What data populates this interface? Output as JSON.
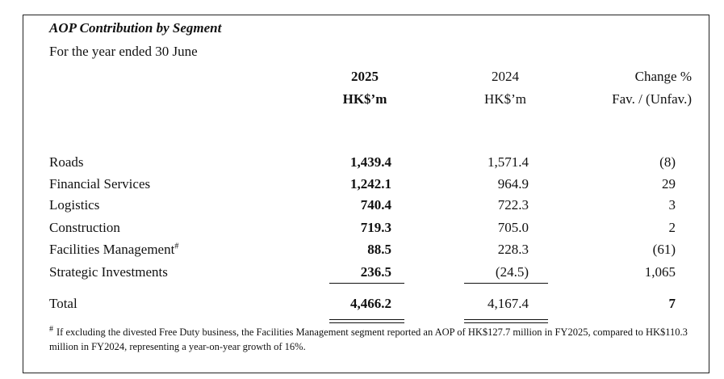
{
  "title": "AOP Contribution by Segment",
  "subtitle": "For the year ended 30 June",
  "columns": {
    "current": {
      "year": "2025",
      "unit": "HK$’m"
    },
    "prior": {
      "year": "2024",
      "unit": "HK$’m"
    },
    "change": {
      "line1": "Change %",
      "line2": "Fav. / (Unfav.)"
    }
  },
  "rows": [
    {
      "segment": "Roads",
      "v2025": "1,439.4",
      "v2024": "1,571.4",
      "change": "(8)"
    },
    {
      "segment": "Financial Services",
      "v2025": "1,242.1",
      "v2024": "964.9",
      "change": "29"
    },
    {
      "segment": "Logistics",
      "v2025": "740.4",
      "v2024": "722.3",
      "change": "3"
    },
    {
      "segment": "Construction",
      "v2025": "719.3",
      "v2024": "705.0",
      "change": "2"
    },
    {
      "segment": "Facilities Management",
      "footnote_mark": "#",
      "v2025": "88.5",
      "v2024": "228.3",
      "change": "(61)"
    },
    {
      "segment": "Strategic Investments",
      "v2025": "236.5",
      "v2024": "(24.5)",
      "change": "1,065"
    }
  ],
  "total": {
    "segment": "Total",
    "v2025": "4,466.2",
    "v2024": "4,167.4",
    "change": "7"
  },
  "footnote": {
    "mark": "#",
    "text": "If excluding the divested Free Duty business, the Facilities Management segment reported an AOP of HK$127.7 million in FY2025, compared to HK$110.3 million in FY2024, representing a year-on-year growth of 16%."
  }
}
